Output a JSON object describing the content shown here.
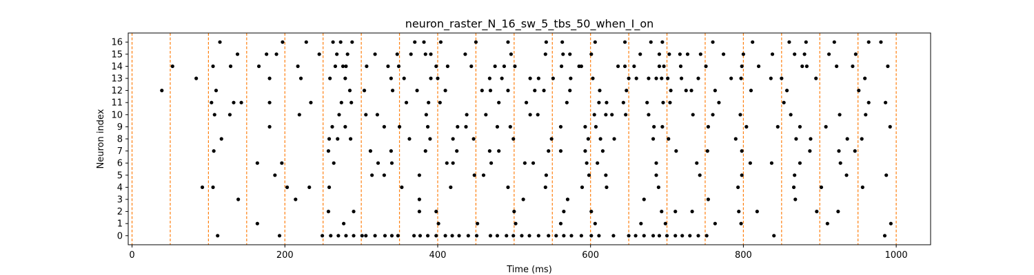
{
  "chart_data": {
    "type": "scatter",
    "title": "neuron_raster_N_16_sw_5_tbs_50_when_I_on",
    "xlabel": "Time (ms)",
    "ylabel": "Neuron index",
    "xlim": [
      -5,
      1045
    ],
    "ylim": [
      -0.75,
      16.75
    ],
    "x_ticks": [
      0,
      200,
      400,
      600,
      800,
      1000
    ],
    "y_ticks": [
      0,
      1,
      2,
      3,
      4,
      5,
      6,
      7,
      8,
      9,
      10,
      11,
      12,
      13,
      14,
      15,
      16
    ],
    "grid": false,
    "legend": "none",
    "marker_color": "#000000",
    "vline_color": "#ff7f0e",
    "vline_style": "dashed",
    "vlines_x": [
      0,
      50,
      100,
      150,
      200,
      250,
      300,
      350,
      400,
      450,
      500,
      550,
      600,
      650,
      700,
      750,
      800,
      850,
      900,
      950,
      1000
    ],
    "spikes": [
      {
        "neuron": 0,
        "times": [
          112,
          193,
          249,
          260,
          270,
          280,
          290,
          301,
          306,
          318,
          331,
          340,
          348,
          369,
          377,
          387,
          398,
          410,
          419,
          428,
          440,
          451,
          469,
          478,
          490,
          499,
          510,
          520,
          532,
          545,
          555,
          565,
          575,
          588,
          601,
          611,
          630,
          650,
          659,
          670,
          682,
          690,
          700,
          711,
          720,
          730,
          741,
          752,
          840,
          985
        ]
      },
      {
        "neuron": 1,
        "times": [
          164,
          277,
          401,
          452,
          502,
          561,
          606,
          666,
          698,
          763,
          797,
          910,
          993
        ]
      },
      {
        "neuron": 2,
        "times": [
          257,
          290,
          376,
          398,
          500,
          565,
          601,
          693,
          711,
          733,
          794,
          818,
          896,
          924
        ]
      },
      {
        "neuron": 3,
        "times": [
          139,
          214,
          376,
          512,
          570,
          670,
          754,
          868
        ]
      },
      {
        "neuron": 4,
        "times": [
          92,
          106,
          203,
          232,
          258,
          353,
          417,
          492,
          541,
          589,
          621,
          689,
          793,
          866,
          902,
          956
        ]
      },
      {
        "neuron": 5,
        "times": [
          187,
          314,
          330,
          376,
          448,
          460,
          542,
          598,
          620,
          686,
          743,
          798,
          867,
          935,
          987
        ]
      },
      {
        "neuron": 6,
        "times": [
          164,
          196,
          264,
          322,
          340,
          412,
          420,
          470,
          514,
          525,
          595,
          609,
          686,
          739,
          809,
          837,
          874,
          927
        ]
      },
      {
        "neuron": 7,
        "times": [
          107,
          257,
          312,
          339,
          384,
          425,
          468,
          480,
          545,
          561,
          593,
          616,
          712,
          753,
          798,
          887,
          925,
          946
        ]
      },
      {
        "neuron": 8,
        "times": [
          117,
          258,
          269,
          286,
          363,
          390,
          420,
          447,
          499,
          549,
          597,
          613,
          631,
          682,
          702,
          790,
          869,
          888,
          936,
          955
        ]
      },
      {
        "neuron": 9,
        "times": [
          180,
          262,
          279,
          330,
          350,
          387,
          426,
          437,
          478,
          495,
          561,
          593,
          607,
          683,
          694,
          754,
          804,
          845,
          874,
          908,
          992
        ]
      },
      {
        "neuron": 10,
        "times": [
          108,
          128,
          219,
          271,
          306,
          321,
          385,
          438,
          463,
          521,
          531,
          605,
          620,
          628,
          646,
          676,
          734,
          760,
          796,
          862,
          926,
          960
        ]
      },
      {
        "neuron": 11,
        "times": [
          104,
          133,
          143,
          180,
          234,
          274,
          287,
          359,
          388,
          403,
          480,
          516,
          569,
          611,
          621,
          643,
          674,
          695,
          704,
          768,
          853,
          964,
          986
        ]
      },
      {
        "neuron": 12,
        "times": [
          39,
          110,
          285,
          304,
          341,
          373,
          410,
          458,
          469,
          492,
          527,
          539,
          573,
          612,
          647,
          705,
          725,
          732,
          763,
          810,
          857,
          951
        ]
      },
      {
        "neuron": 13,
        "times": [
          84,
          180,
          221,
          259,
          279,
          339,
          356,
          391,
          400,
          468,
          484,
          521,
          532,
          551,
          574,
          603,
          650,
          660,
          676,
          686,
          693,
          701,
          719,
          741,
          784,
          797,
          836,
          850,
          895,
          959
        ]
      },
      {
        "neuron": 14,
        "times": [
          53,
          106,
          129,
          166,
          217,
          266,
          276,
          280,
          307,
          335,
          349,
          398,
          413,
          444,
          475,
          487,
          501,
          562,
          585,
          588,
          636,
          645,
          657,
          690,
          696,
          718,
          751,
          798,
          820,
          877,
          883,
          922,
          943,
          989
        ]
      },
      {
        "neuron": 15,
        "times": [
          138,
          176,
          189,
          245,
          268,
          282,
          318,
          347,
          365,
          384,
          391,
          436,
          496,
          541,
          564,
          573,
          601,
          665,
          690,
          703,
          717,
          727,
          744,
          774,
          800,
          838,
          867,
          880,
          912,
          947
        ]
      },
      {
        "neuron": 16,
        "times": [
          115,
          197,
          228,
          263,
          273,
          288,
          370,
          382,
          404,
          450,
          492,
          542,
          563,
          606,
          645,
          679,
          694,
          760,
          812,
          860,
          882,
          919,
          964,
          980
        ]
      }
    ]
  }
}
